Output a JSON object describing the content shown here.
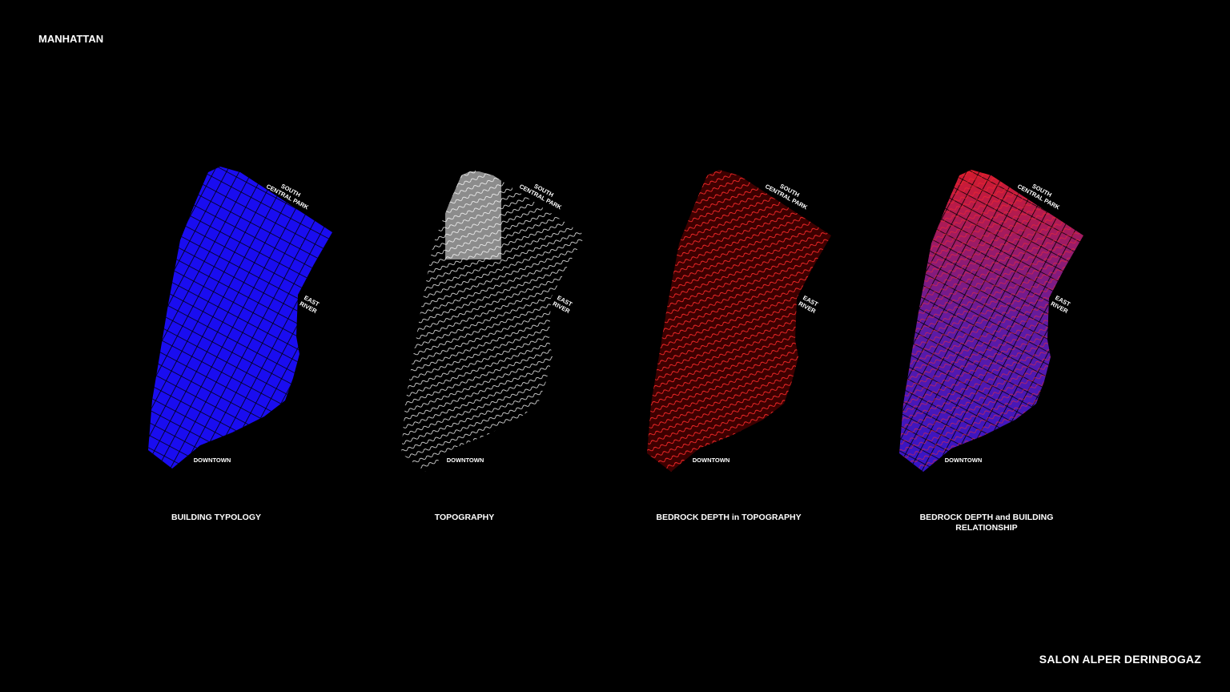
{
  "header": {
    "title": "MANHATTAN"
  },
  "footer": {
    "credit": "SALON ALPER DERINBOGAZ"
  },
  "map_labels": {
    "north": [
      "SOUTH",
      "CENTRAL PARK"
    ],
    "east": [
      "EAST",
      "RIVER"
    ],
    "south": "DOWNTOWN"
  },
  "panels": [
    {
      "caption": "BUILDING TYPOLOGY",
      "color": "#1a0df0"
    },
    {
      "caption": "TOPOGRAPHY",
      "color": "#ffffff"
    },
    {
      "caption": "BEDROCK DEPTH in TOPOGRAPHY",
      "color": "#ff2020"
    },
    {
      "caption": "BEDROCK DEPTH and BUILDING RELATIONSHIP",
      "color": "#ff2a2a",
      "secondary_color": "#2a10ee"
    }
  ]
}
